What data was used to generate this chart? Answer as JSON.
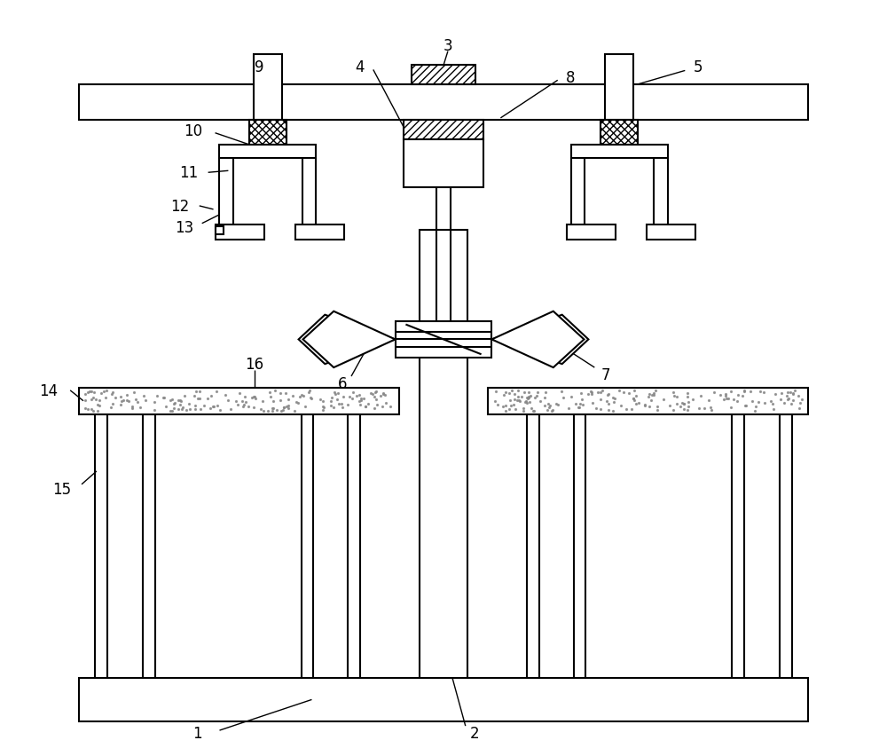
{
  "bg_color": "#ffffff",
  "fig_width": 10.0,
  "fig_height": 8.53,
  "lw": 1.5,
  "lw_thin": 1.0
}
